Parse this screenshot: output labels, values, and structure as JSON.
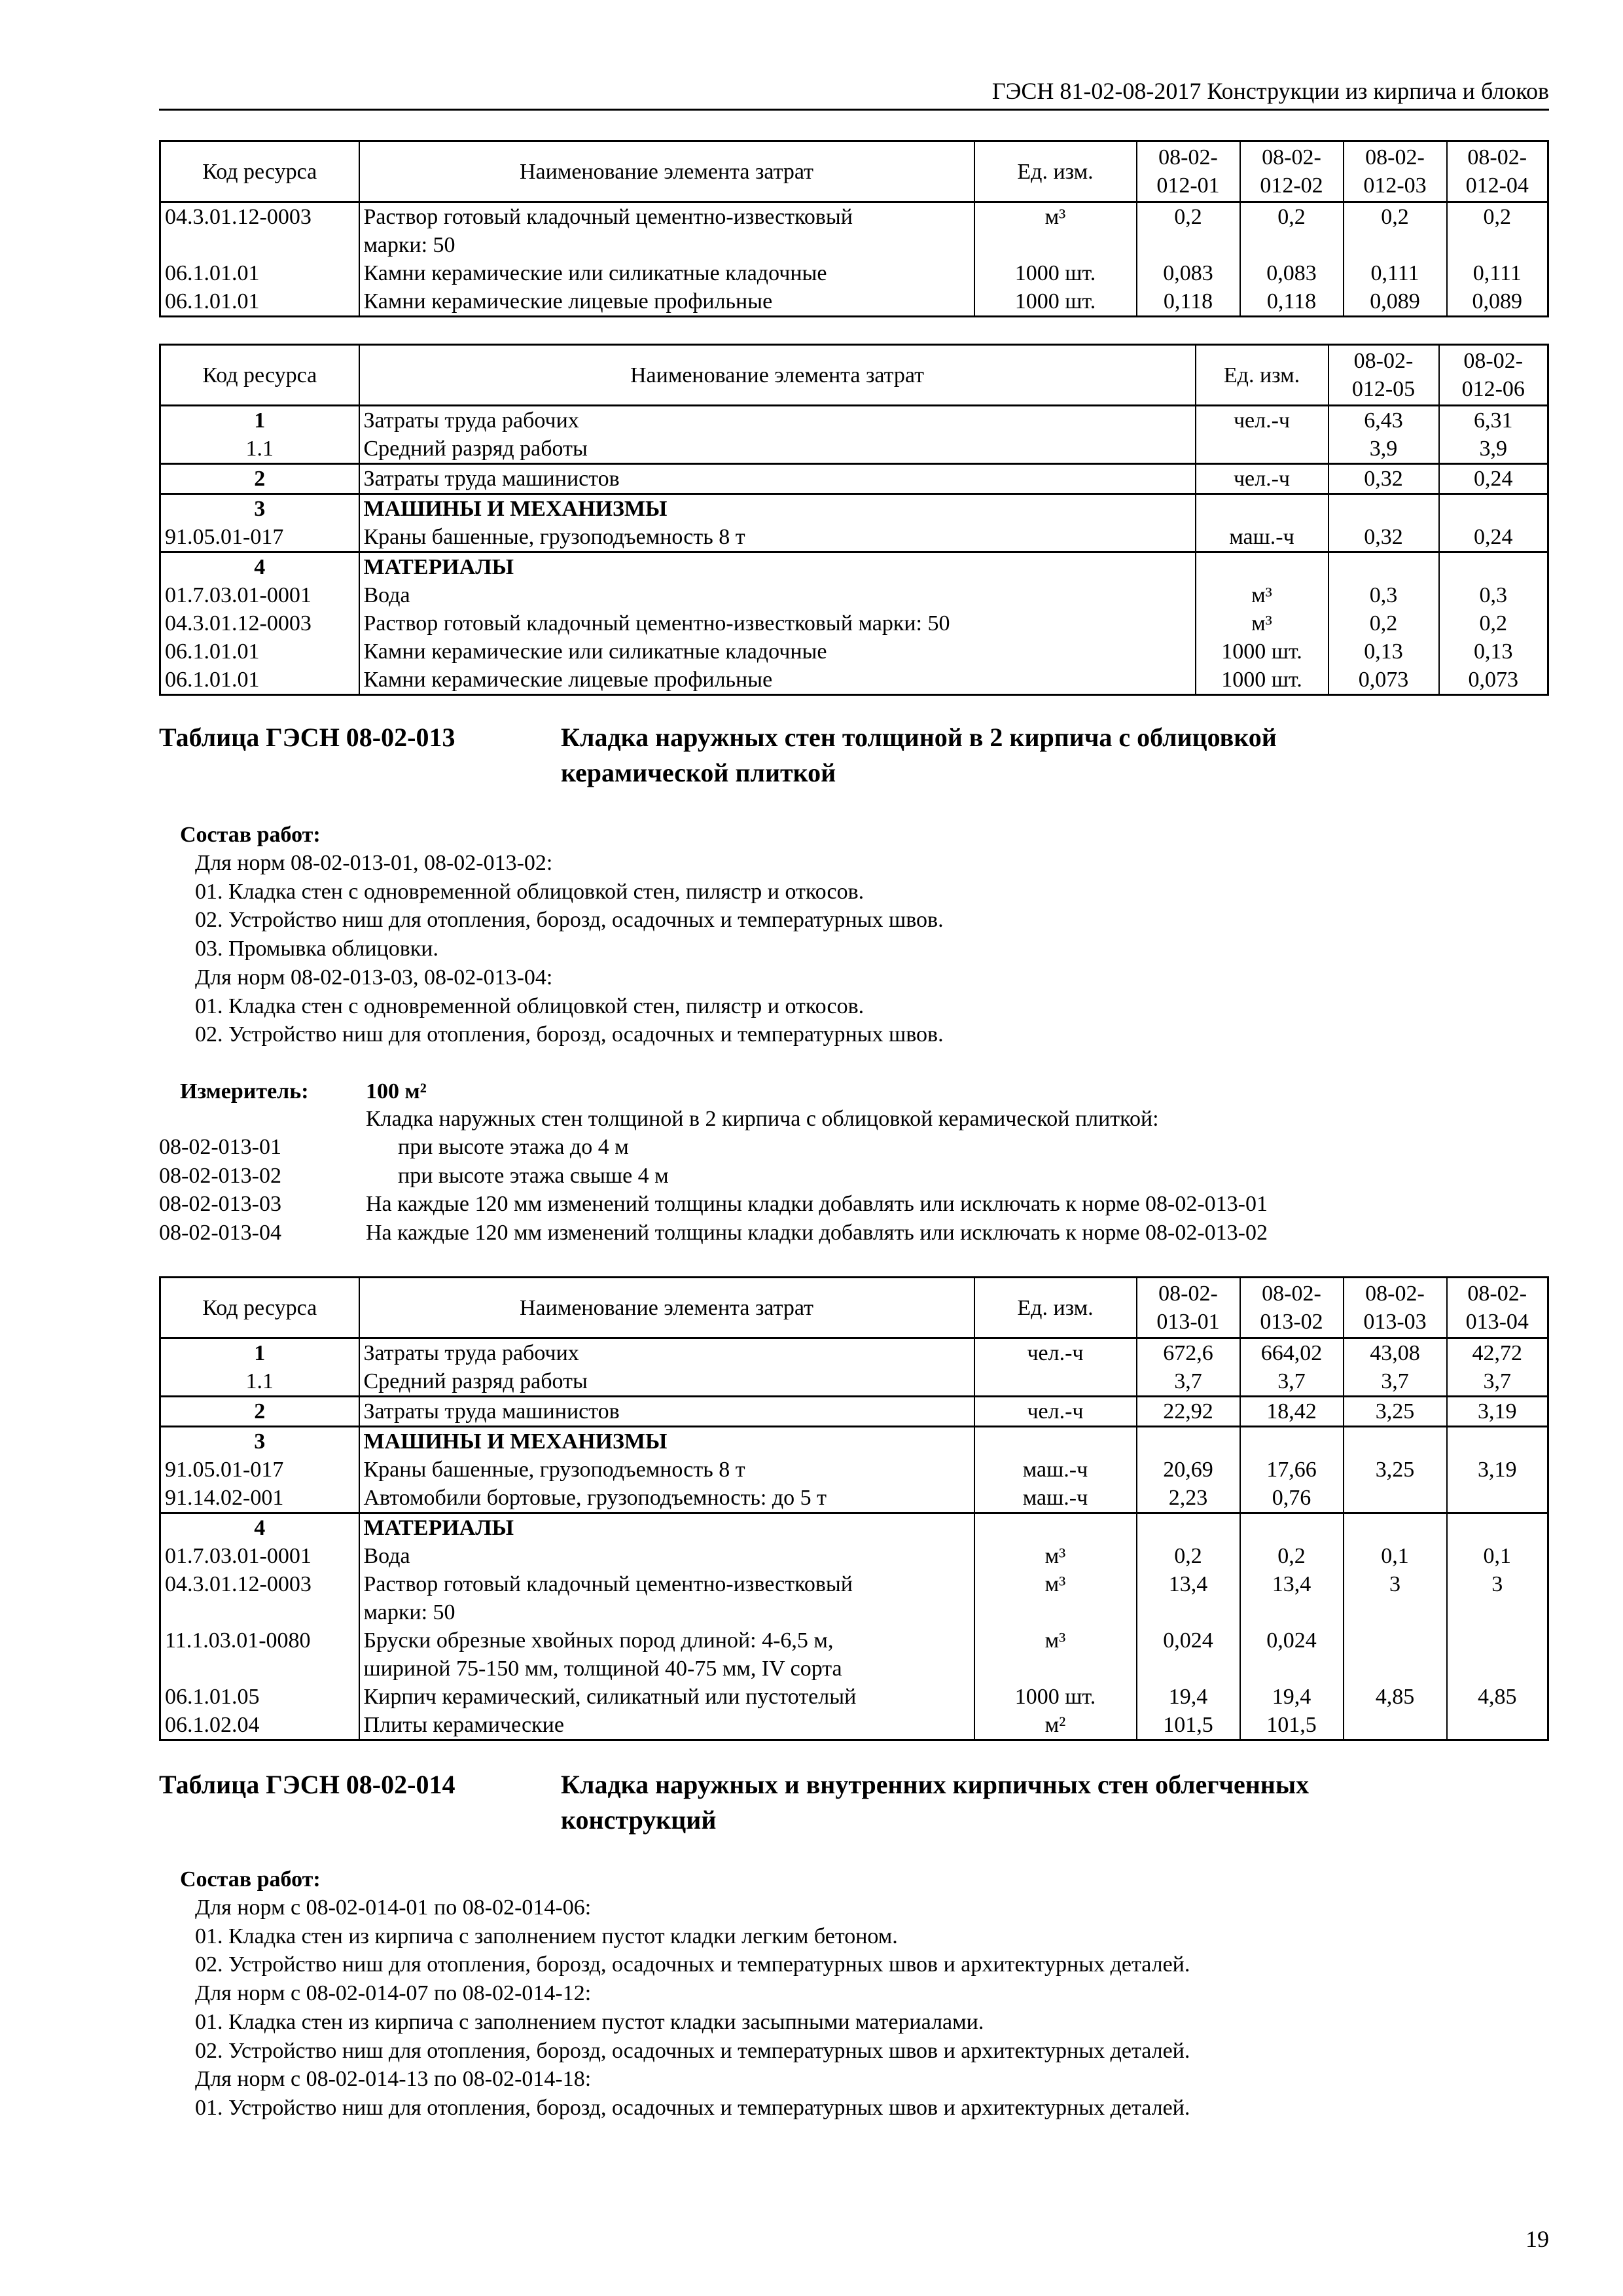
{
  "header": {
    "running_title": "ГЭСН 81-02-08-2017 Конструкции из кирпича и блоков"
  },
  "table1": {
    "columns": [
      "Код ресурса",
      "Наименование элемента затрат",
      "Ед. изм.",
      "08-02-\n012-01",
      "08-02-\n012-02",
      "08-02-\n012-03",
      "08-02-\n012-04"
    ],
    "groups": [
      [
        {
          "cells": [
            "04.3.01.12-0003",
            "Раствор готовый кладочный цементно-известковый",
            "м³",
            "0,2",
            "0,2",
            "0,2",
            "0,2"
          ]
        },
        {
          "cells": [
            "",
            "марки: 50",
            "",
            "",
            "",
            "",
            ""
          ]
        },
        {
          "cells": [
            "06.1.01.01",
            "Камни керамические или силикатные кладочные",
            "1000 шт.",
            "0,083",
            "0,083",
            "0,111",
            "0,111"
          ]
        },
        {
          "cells": [
            "06.1.01.01",
            "Камни керамические лицевые профильные",
            "1000 шт.",
            "0,118",
            "0,118",
            "0,089",
            "0,089"
          ]
        }
      ]
    ]
  },
  "table2": {
    "columns": [
      "Код ресурса",
      "Наименование элемента затрат",
      "Ед. изм.",
      "08-02-\n012-05",
      "08-02-\n012-06"
    ],
    "groups": [
      [
        {
          "cells": [
            "1",
            "Затраты труда рабочих",
            "чел.-ч",
            "6,43",
            "6,31"
          ],
          "code_bold": true,
          "code_center": true
        },
        {
          "cells": [
            "1.1",
            "Средний разряд работы",
            "",
            "3,9",
            "3,9"
          ],
          "code_center": true
        }
      ],
      [
        {
          "cells": [
            "2",
            "Затраты труда машинистов",
            "чел.-ч",
            "0,32",
            "0,24"
          ],
          "code_bold": true,
          "code_center": true
        }
      ],
      [
        {
          "cells": [
            "3",
            "МАШИНЫ И МЕХАНИЗМЫ",
            "",
            "",
            ""
          ],
          "code_bold": true,
          "code_center": true,
          "name_bold": true
        },
        {
          "cells": [
            "91.05.01-017",
            "Краны башенные, грузоподъемность 8 т",
            "маш.-ч",
            "0,32",
            "0,24"
          ]
        }
      ],
      [
        {
          "cells": [
            "4",
            "МАТЕРИАЛЫ",
            "",
            "",
            ""
          ],
          "code_bold": true,
          "code_center": true,
          "name_bold": true
        },
        {
          "cells": [
            "01.7.03.01-0001",
            "Вода",
            "м³",
            "0,3",
            "0,3"
          ]
        },
        {
          "cells": [
            "04.3.01.12-0003",
            "Раствор готовый кладочный цементно-известковый марки: 50",
            "м³",
            "0,2",
            "0,2"
          ]
        },
        {
          "cells": [
            "06.1.01.01",
            "Камни керамические или силикатные кладочные",
            "1000 шт.",
            "0,13",
            "0,13"
          ]
        },
        {
          "cells": [
            "06.1.01.01",
            "Камни керамические лицевые профильные",
            "1000 шт.",
            "0,073",
            "0,073"
          ]
        }
      ]
    ]
  },
  "section013": {
    "table_label": "Таблица ГЭСН 08-02-013",
    "title_line1": "Кладка наружных стен толщиной в 2 кирпича с облицовкой",
    "title_line2": "керамической плиткой",
    "works_heading": "Состав работ:",
    "works": [
      "Для норм 08-02-013-01, 08-02-013-02:",
      "01. Кладка стен с одновременной облицовкой стен, пилястр и откосов.",
      "02. Устройство ниш для отопления, борозд, осадочных и температурных швов.",
      "03. Промывка облицовки.",
      "Для норм 08-02-013-03, 08-02-013-04:",
      "01. Кладка стен с одновременной облицовкой стен, пилястр и откосов.",
      "02. Устройство ниш для отопления, борозд, осадочных и температурных швов."
    ],
    "meter_label": "Измеритель:",
    "meter_value": "100 м²",
    "norms_intro": "Кладка наружных стен толщиной в 2 кирпича с облицовкой керамической плиткой:",
    "norms": [
      {
        "code": "08-02-013-01",
        "text": "при высоте этажа до 4 м",
        "indent": true
      },
      {
        "code": "08-02-013-02",
        "text": "при высоте этажа свыше 4 м",
        "indent": true
      },
      {
        "code": "08-02-013-03",
        "text": "На каждые 120 мм изменений толщины кладки добавлять или исключать к норме 08-02-013-01"
      },
      {
        "code": "08-02-013-04",
        "text": "На каждые 120 мм изменений толщины кладки добавлять или исключать к норме 08-02-013-02"
      }
    ]
  },
  "table3": {
    "columns": [
      "Код ресурса",
      "Наименование элемента затрат",
      "Ед. изм.",
      "08-02-\n013-01",
      "08-02-\n013-02",
      "08-02-\n013-03",
      "08-02-\n013-04"
    ],
    "groups": [
      [
        {
          "cells": [
            "1",
            "Затраты труда рабочих",
            "чел.-ч",
            "672,6",
            "664,02",
            "43,08",
            "42,72"
          ],
          "code_bold": true,
          "code_center": true
        },
        {
          "cells": [
            "1.1",
            "Средний разряд работы",
            "",
            "3,7",
            "3,7",
            "3,7",
            "3,7"
          ],
          "code_center": true
        }
      ],
      [
        {
          "cells": [
            "2",
            "Затраты труда машинистов",
            "чел.-ч",
            "22,92",
            "18,42",
            "3,25",
            "3,19"
          ],
          "code_bold": true,
          "code_center": true
        }
      ],
      [
        {
          "cells": [
            "3",
            "МАШИНЫ И МЕХАНИЗМЫ",
            "",
            "",
            "",
            "",
            ""
          ],
          "code_bold": true,
          "code_center": true,
          "name_bold": true
        },
        {
          "cells": [
            "91.05.01-017",
            "Краны башенные, грузоподъемность 8 т",
            "маш.-ч",
            "20,69",
            "17,66",
            "3,25",
            "3,19"
          ]
        },
        {
          "cells": [
            "91.14.02-001",
            "Автомобили бортовые, грузоподъемность: до 5 т",
            "маш.-ч",
            "2,23",
            "0,76",
            "",
            ""
          ]
        }
      ],
      [
        {
          "cells": [
            "4",
            "МАТЕРИАЛЫ",
            "",
            "",
            "",
            "",
            ""
          ],
          "code_bold": true,
          "code_center": true,
          "name_bold": true
        },
        {
          "cells": [
            "01.7.03.01-0001",
            "Вода",
            "м³",
            "0,2",
            "0,2",
            "0,1",
            "0,1"
          ]
        },
        {
          "cells": [
            "04.3.01.12-0003",
            "Раствор готовый кладочный цементно-известковый",
            "м³",
            "13,4",
            "13,4",
            "3",
            "3"
          ]
        },
        {
          "cells": [
            "",
            "марки: 50",
            "",
            "",
            "",
            "",
            ""
          ]
        },
        {
          "cells": [
            "11.1.03.01-0080",
            "Бруски обрезные хвойных пород длиной: 4-6,5 м,",
            "м³",
            "0,024",
            "0,024",
            "",
            ""
          ]
        },
        {
          "cells": [
            "",
            "шириной 75-150 мм, толщиной 40-75 мм, IV сорта",
            "",
            "",
            "",
            "",
            ""
          ]
        },
        {
          "cells": [
            "06.1.01.05",
            "Кирпич керамический, силикатный или пустотелый",
            "1000 шт.",
            "19,4",
            "19,4",
            "4,85",
            "4,85"
          ]
        },
        {
          "cells": [
            "06.1.02.04",
            "Плиты керамические",
            "м²",
            "101,5",
            "101,5",
            "",
            ""
          ]
        }
      ]
    ]
  },
  "section014": {
    "table_label": "Таблица ГЭСН 08-02-014",
    "title_line1": "Кладка наружных и внутренних кирпичных стен облегченных",
    "title_line2": "конструкций",
    "works_heading": "Состав работ:",
    "works": [
      "Для норм с 08-02-014-01 по 08-02-014-06:",
      "01. Кладка стен из кирпича с заполнением пустот кладки легким бетоном.",
      "02. Устройство ниш для отопления, борозд, осадочных и температурных швов и архитектурных деталей.",
      "Для норм с 08-02-014-07 по 08-02-014-12:",
      "01. Кладка стен из кирпича с заполнением пустот кладки засыпными материалами.",
      "02. Устройство ниш для отопления, борозд, осадочных и температурных швов и архитектурных деталей.",
      "Для норм с 08-02-014-13 по 08-02-014-18:",
      "01. Устройство ниш для отопления, борозд, осадочных и температурных швов и архитектурных деталей."
    ]
  },
  "footer": {
    "page_number": "19"
  }
}
